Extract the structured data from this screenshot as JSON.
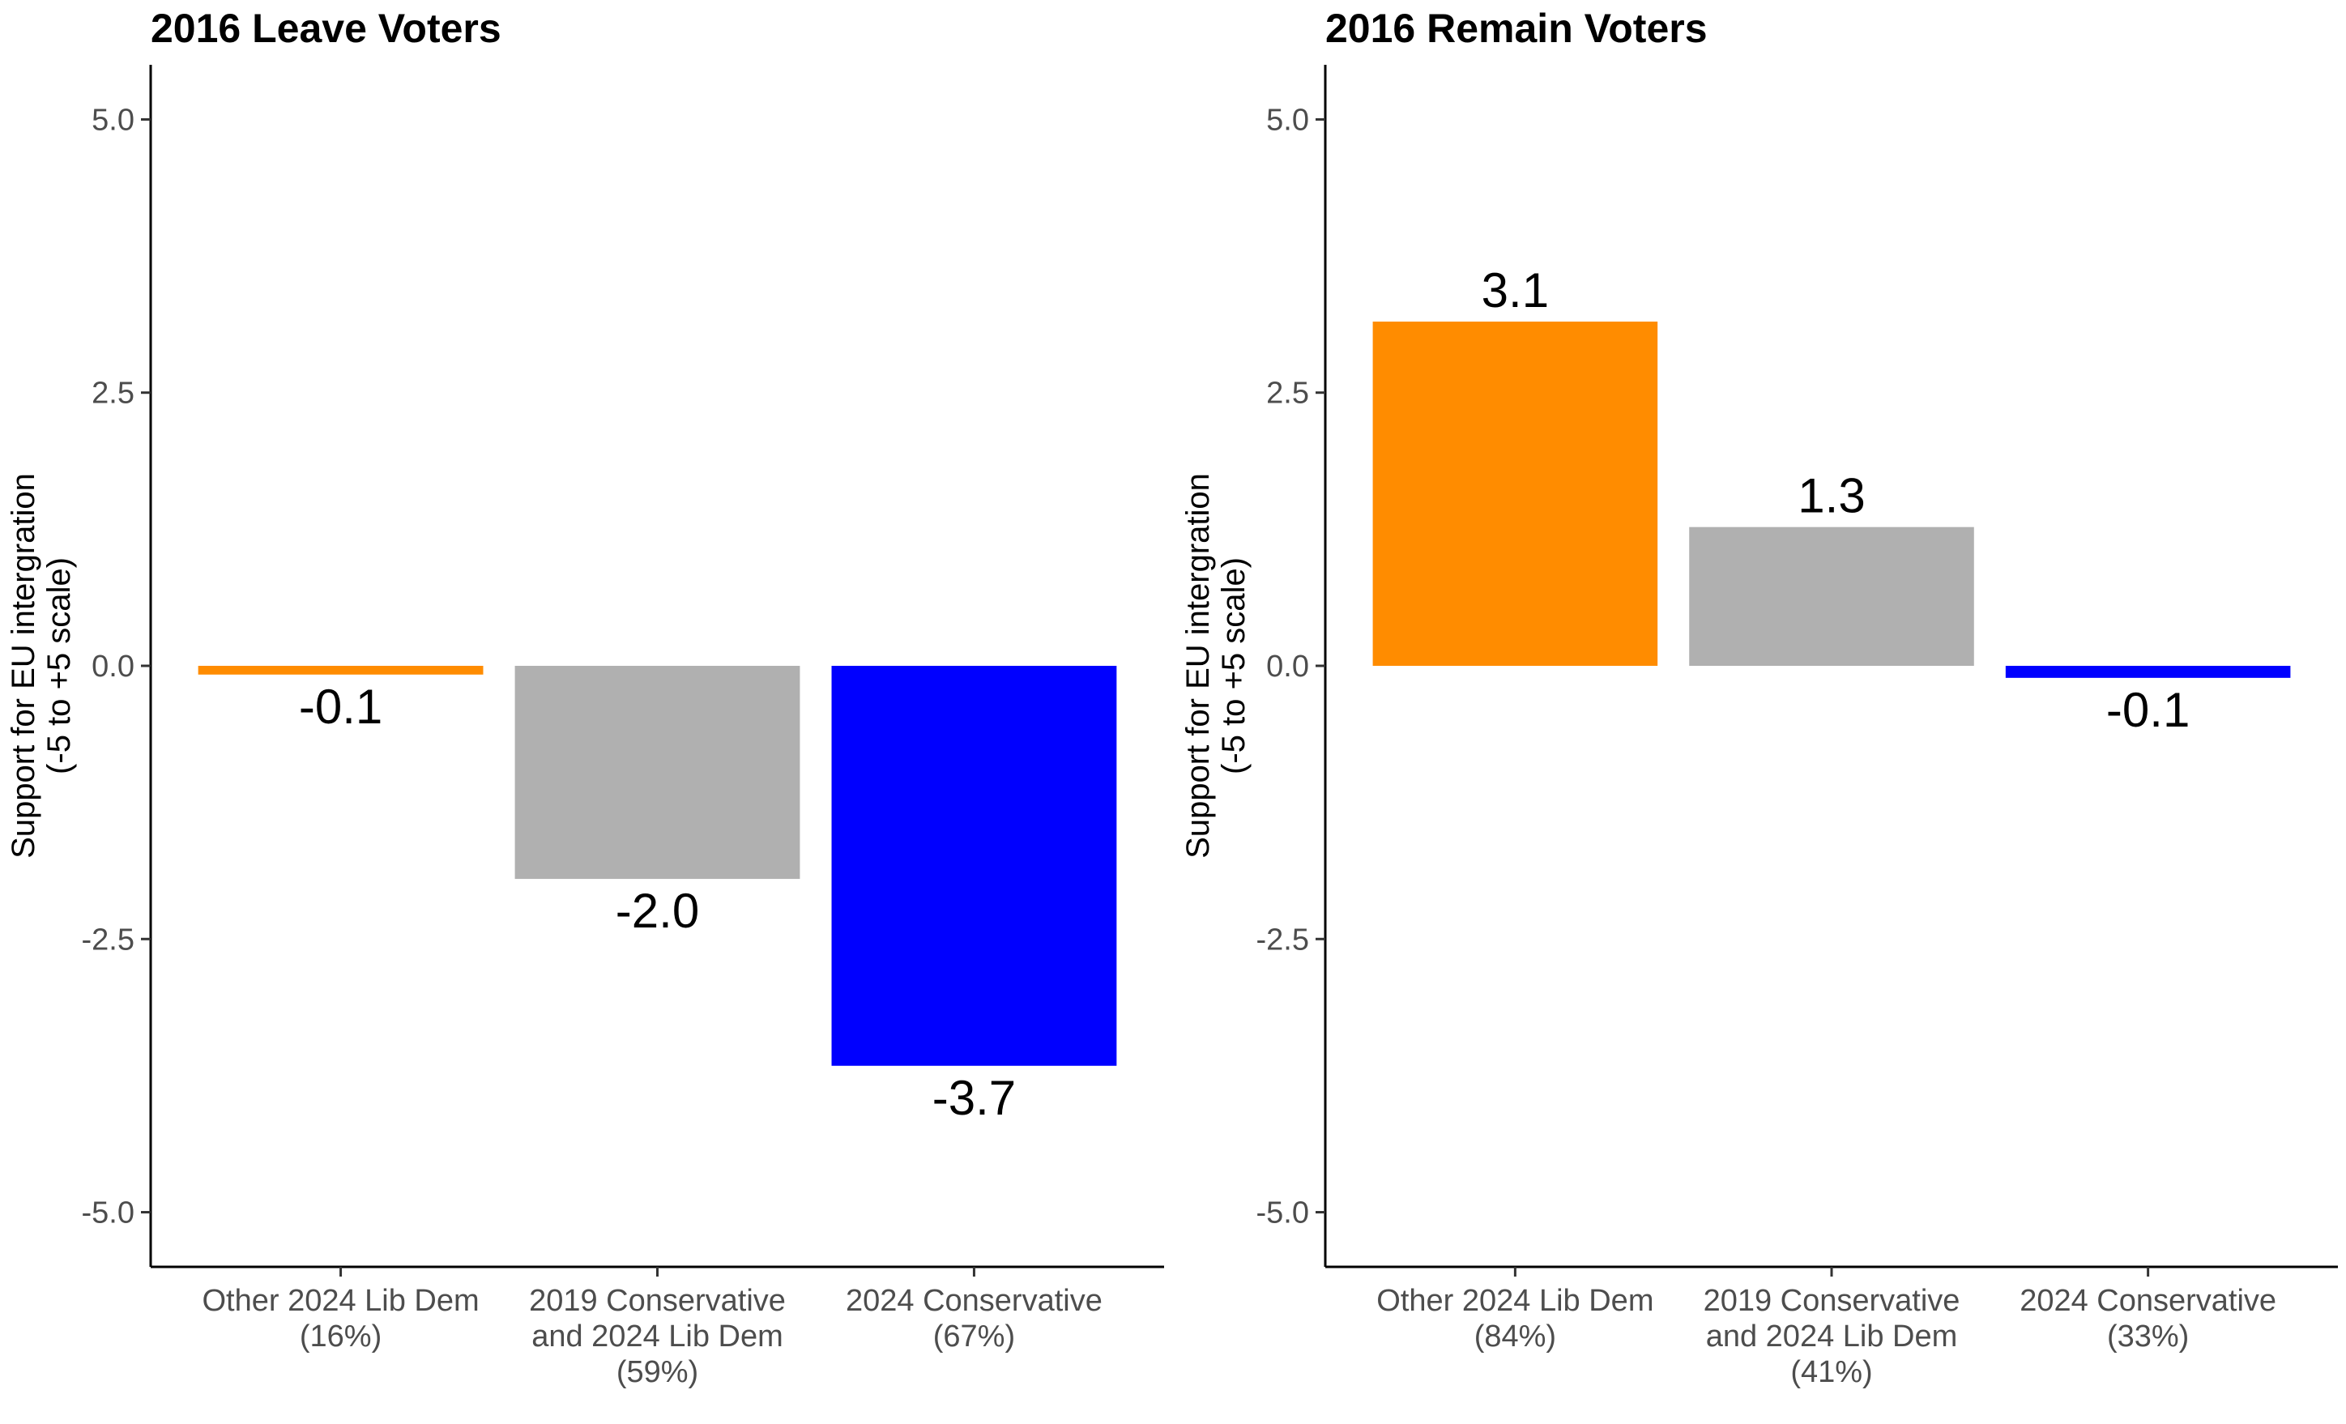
{
  "chart_data": [
    {
      "type": "bar",
      "title": "2016 Leave Voters",
      "ylabel": "Support for EU intergration\n(-5 to +5 scale)",
      "ylim": [
        -5.5,
        5.5
      ],
      "yticks": [
        "-5.0",
        "-2.5",
        "0.0",
        "2.5",
        "5.0"
      ],
      "ytick_values": [
        -5,
        -2.5,
        0,
        2.5,
        5
      ],
      "grid": false,
      "categories": [
        [
          "Other 2024 Lib Dem",
          "(16%)"
        ],
        [
          "2019 Conservative",
          "and 2024 Lib Dem",
          "(59%)"
        ],
        [
          "2024 Conservative",
          "(67%)"
        ]
      ],
      "values": [
        -0.08,
        -1.95,
        -3.66
      ],
      "value_labels": [
        "-0.1",
        "-2.0",
        "-3.7"
      ],
      "colors": [
        "#FF8C00",
        "#B0B0B0",
        "#0000FF"
      ]
    },
    {
      "type": "bar",
      "title": "2016 Remain Voters",
      "ylabel": "Support for EU intergration\n(-5 to +5 scale)",
      "ylim": [
        -5.5,
        5.5
      ],
      "yticks": [
        "-5.0",
        "-2.5",
        "0.0",
        "2.5",
        "5.0"
      ],
      "ytick_values": [
        -5,
        -2.5,
        0,
        2.5,
        5
      ],
      "grid": false,
      "categories": [
        [
          "Other 2024 Lib Dem",
          "(84%)"
        ],
        [
          "2019 Conservative",
          "and 2024 Lib Dem",
          "(41%)"
        ],
        [
          "2024 Conservative",
          "(33%)"
        ]
      ],
      "values": [
        3.15,
        1.27,
        -0.11
      ],
      "value_labels": [
        "3.1",
        "1.3",
        "-0.1"
      ],
      "colors": [
        "#FF8C00",
        "#B0B0B0",
        "#0000FF"
      ]
    }
  ]
}
